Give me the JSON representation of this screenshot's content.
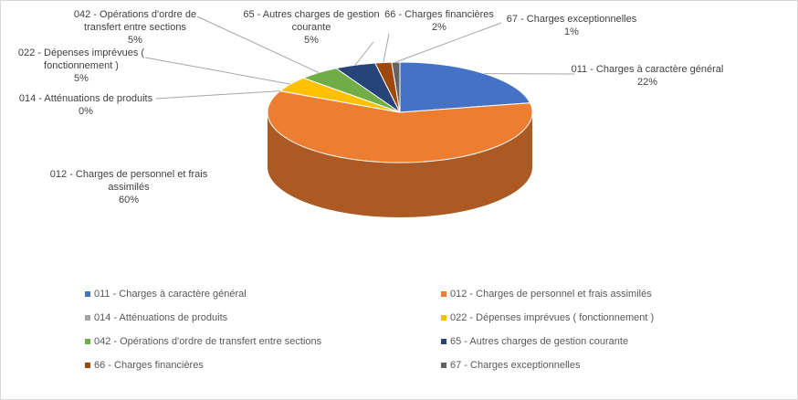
{
  "chart_data": {
    "type": "pie3d",
    "categories": [
      "011 - Charges à caractère général",
      "012 - Charges de personnel et frais assimilés",
      "014 - Atténuations de produits",
      "022 - Dépenses imprévues ( fonctionnement )",
      "042 - Opérations d'ordre de transfert entre sections",
      "65 - Autres charges de gestion courante",
      "66 - Charges financières",
      "67 - Charges exceptionnelles"
    ],
    "values": [
      22,
      60,
      0,
      5,
      5,
      5,
      2,
      1
    ],
    "value_labels": [
      "22%",
      "60%",
      "0%",
      "5%",
      "5%",
      "5%",
      "2%",
      "1%"
    ],
    "colors": [
      "#4472c4",
      "#ed7d31",
      "#a5a5a5",
      "#ffc000",
      "#70ad47",
      "#264478",
      "#9e480e",
      "#636363"
    ],
    "legend": "bottom"
  }
}
